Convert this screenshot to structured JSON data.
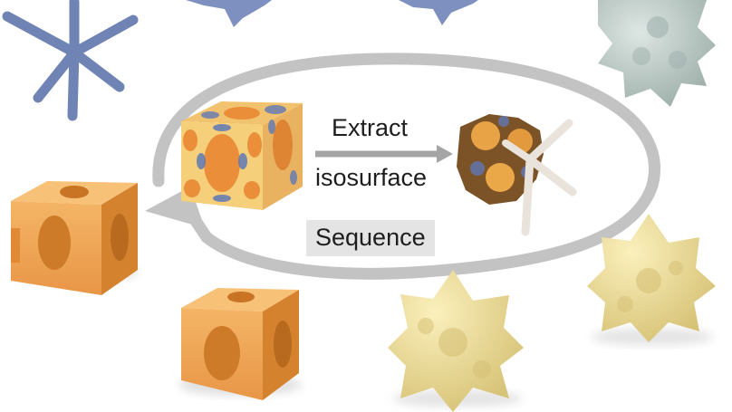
{
  "labels": {
    "extract": "Extract",
    "isosurface": "isosurface",
    "sequence": "Sequence"
  },
  "colors": {
    "orange": "#f0a04a",
    "yellow": "#eedc93",
    "blue": "#6f84b5",
    "gray_blue": "#b7c6c2",
    "arrow": "#c3c3c3"
  },
  "icons": [
    "skeleton-star",
    "orange-lattice-cube",
    "yellow-lattice-star",
    "density-field-cube",
    "isosurface-with-skeleton",
    "cycle-arrow"
  ]
}
